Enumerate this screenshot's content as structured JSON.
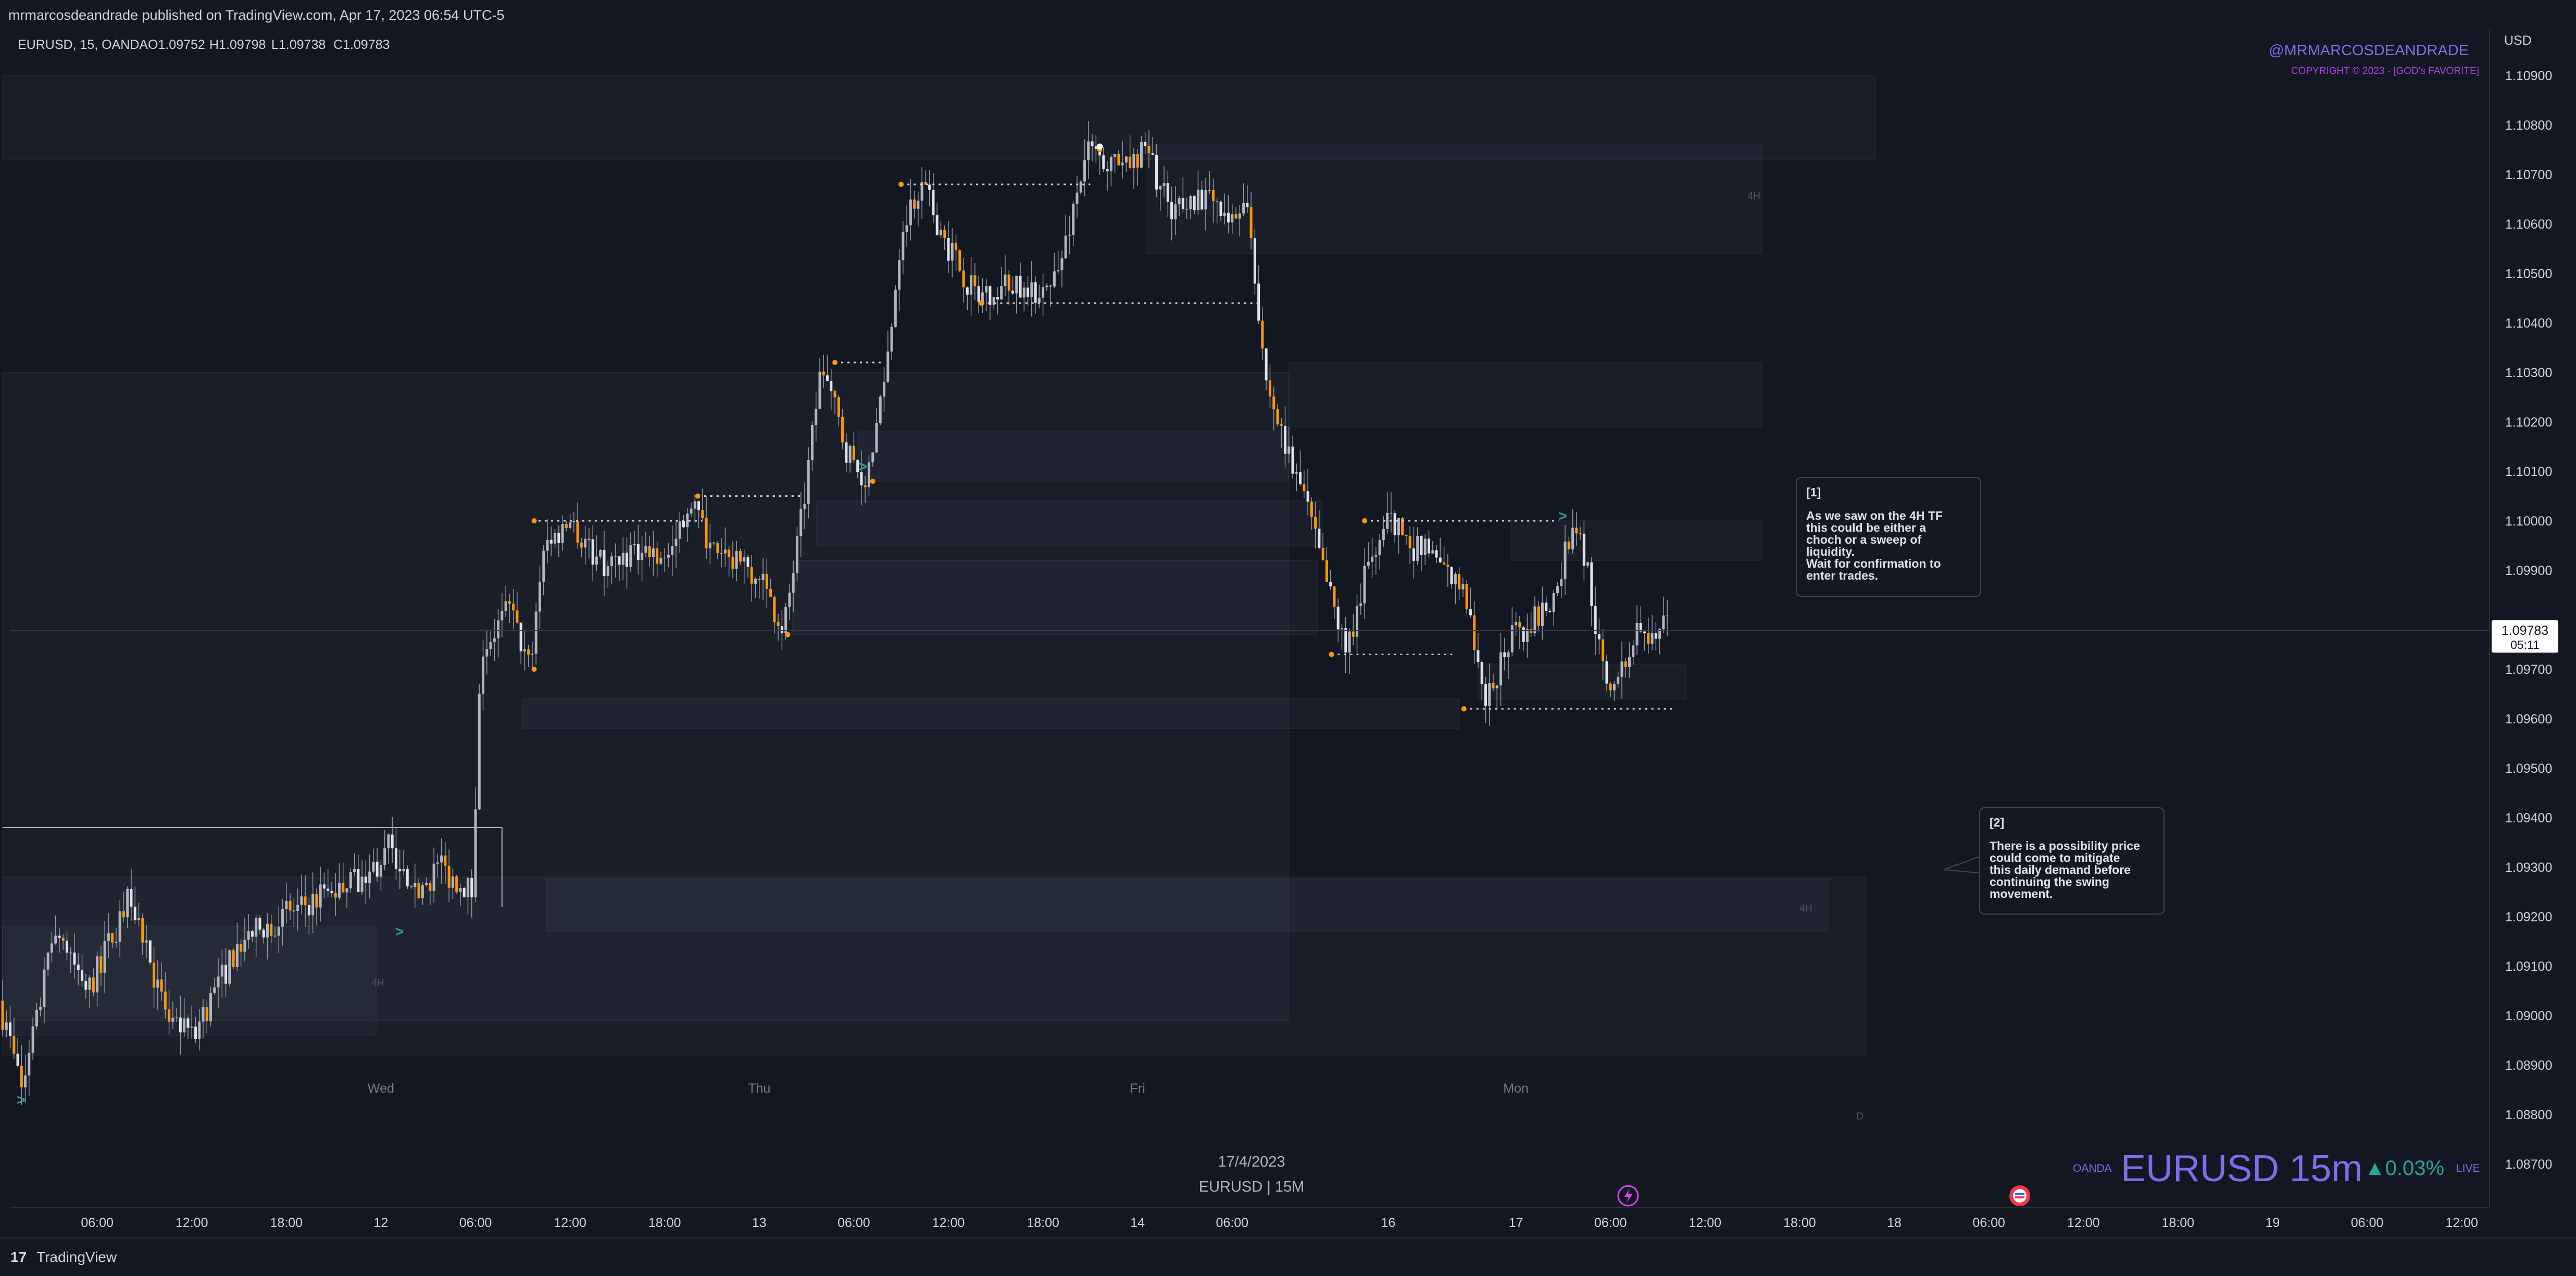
{
  "header": {
    "published": "mrmarcosdeandrade published on TradingView.com, Apr 17, 2023 06:54 UTC-5"
  },
  "symbol_info": {
    "symbol": "EURUSD, 15, OANDA",
    "open": "O1.09752",
    "high": "H1.09798",
    "low": "L1.09738",
    "close": "C1.09783"
  },
  "watermark": {
    "handle": "@MRMARCOSDEANDRADE",
    "copyright": "COPYRIGHT © 2023 - [GOD's FAVORITE]"
  },
  "center_caption": {
    "date": "17/4/2023",
    "label": "EURUSD | 15M"
  },
  "ticker_display": {
    "broker": "OANDA",
    "name": "EURUSD 15m",
    "change": "▲0.03%",
    "live": "LIVE"
  },
  "notes": [
    {
      "title": "[1]",
      "body": "As we saw on the 4H TF\nthis could be either a\nchoch or a sweep of\nliquidity.\nWait for confirmation to\nenter trades."
    },
    {
      "title": "[2]",
      "body": "There is a possibility price\ncould come to mitigate\nthis daily demand before\ncontinuing the swing\nmovement."
    }
  ],
  "footer": {
    "brand": "TradingView",
    "logo": "17"
  },
  "colors": {
    "background": "#131722",
    "candle_up": "#b2b5be",
    "candle_down": "#ff9800",
    "handle": "#7b6fe8",
    "copyright": "#b040e0",
    "change": "#26a69a"
  },
  "chart_data": {
    "type": "candlestick",
    "symbol": "EURUSD",
    "timeframe": "15",
    "currency": "USD",
    "ylim": [
      1.0866,
      1.1099
    ],
    "y_ticks": [
      "1.08700",
      "1.08800",
      "1.08900",
      "1.09000",
      "1.09100",
      "1.09200",
      "1.09300",
      "1.09400",
      "1.09500",
      "1.09600",
      "1.09700",
      "1.09900",
      "1.10000",
      "1.10100",
      "1.10200",
      "1.10300",
      "1.10400",
      "1.10500",
      "1.10600",
      "1.10700",
      "1.10800",
      "1.10900"
    ],
    "x_ticks": [
      {
        "t": 1.0,
        "label": "06:00"
      },
      {
        "t": 2.0,
        "label": "12:00"
      },
      {
        "t": 3.0,
        "label": "18:00"
      },
      {
        "t": 4.0,
        "label": "12"
      },
      {
        "t": 5.0,
        "label": "06:00"
      },
      {
        "t": 6.0,
        "label": "12:00"
      },
      {
        "t": 7.0,
        "label": "18:00"
      },
      {
        "t": 8.0,
        "label": "13"
      },
      {
        "t": 9.0,
        "label": "06:00"
      },
      {
        "t": 10.0,
        "label": "12:00"
      },
      {
        "t": 11.0,
        "label": "18:00"
      },
      {
        "t": 12.0,
        "label": "14"
      },
      {
        "t": 13.0,
        "label": "06:00"
      },
      {
        "t": 14.65,
        "label": "16"
      },
      {
        "t": 16.0,
        "label": "17"
      },
      {
        "t": 17.0,
        "label": "06:00"
      },
      {
        "t": 18.0,
        "label": "12:00"
      },
      {
        "t": 19.0,
        "label": "18:00"
      },
      {
        "t": 20.0,
        "label": "18"
      },
      {
        "t": 21.0,
        "label": "06:00"
      },
      {
        "t": 22.0,
        "label": "12:00"
      },
      {
        "t": 23.0,
        "label": "18:00"
      },
      {
        "t": 24.0,
        "label": "19"
      },
      {
        "t": 25.0,
        "label": "06:00"
      },
      {
        "t": 26.0,
        "label": "12:00"
      }
    ],
    "day_labels": [
      {
        "t": 4.0,
        "label": "Wed"
      },
      {
        "t": 8.0,
        "label": "Thu"
      },
      {
        "t": 12.0,
        "label": "Fri"
      },
      {
        "t": 16.0,
        "label": "Mon"
      }
    ],
    "price_label": {
      "value": "1.09783",
      "countdown": "05:11",
      "price": 1.09783
    },
    "pivots": [
      [
        0.0,
        1.0903
      ],
      [
        0.25,
        1.0885
      ],
      [
        0.6,
        1.0918
      ],
      [
        0.95,
        1.0905
      ],
      [
        1.4,
        1.0925
      ],
      [
        1.75,
        1.09
      ],
      [
        2.05,
        1.0896
      ],
      [
        2.55,
        1.0915
      ],
      [
        3.0,
        1.092
      ],
      [
        3.5,
        1.0925
      ],
      [
        3.9,
        1.0928
      ],
      [
        4.15,
        1.0935
      ],
      [
        4.35,
        1.0923
      ],
      [
        4.65,
        1.093
      ],
      [
        5.0,
        1.0925
      ],
      [
        5.1,
        1.0974
      ],
      [
        5.4,
        1.0982
      ],
      [
        5.62,
        1.097
      ],
      [
        5.75,
        1.0995
      ],
      [
        6.05,
        1.1
      ],
      [
        6.4,
        1.099
      ],
      [
        6.75,
        1.0995
      ],
      [
        7.1,
        1.0993
      ],
      [
        7.3,
        1.1005
      ],
      [
        7.6,
        1.0992
      ],
      [
        8.0,
        1.099
      ],
      [
        8.3,
        1.0978
      ],
      [
        8.5,
        1.1002
      ],
      [
        8.7,
        1.1032
      ],
      [
        8.95,
        1.1015
      ],
      [
        9.15,
        1.1008
      ],
      [
        9.35,
        1.1025
      ],
      [
        9.55,
        1.106
      ],
      [
        9.75,
        1.1068
      ],
      [
        10.05,
        1.1055
      ],
      [
        10.35,
        1.1045
      ],
      [
        10.6,
        1.1048
      ],
      [
        10.9,
        1.1046
      ],
      [
        11.2,
        1.105
      ],
      [
        11.5,
        1.1075
      ],
      [
        11.75,
        1.1072
      ],
      [
        12.15,
        1.1074
      ],
      [
        12.4,
        1.1062
      ],
      [
        12.7,
        1.1066
      ],
      [
        13.0,
        1.106
      ],
      [
        13.2,
        1.1065
      ],
      [
        13.4,
        1.1028
      ],
      [
        13.6,
        1.1015
      ],
      [
        13.8,
        1.1005
      ],
      [
        14.0,
        1.099
      ],
      [
        14.25,
        1.0973
      ],
      [
        14.45,
        1.099
      ],
      [
        14.7,
        1.1
      ],
      [
        14.95,
        1.0995
      ],
      [
        15.2,
        1.0992
      ],
      [
        15.5,
        1.0985
      ],
      [
        15.7,
        1.0962
      ],
      [
        15.95,
        1.0975
      ],
      [
        16.2,
        1.098
      ],
      [
        16.45,
        1.0985
      ],
      [
        16.65,
        1.1
      ],
      [
        16.8,
        1.099
      ],
      [
        16.95,
        1.097
      ],
      [
        17.1,
        1.0965
      ],
      [
        17.35,
        1.0981
      ],
      [
        17.5,
        1.0974
      ],
      [
        17.6,
        1.0978
      ]
    ],
    "zones": [
      {
        "t0": 0.0,
        "t1": 13.6,
        "top": 1.103,
        "bot": 1.0899
      },
      {
        "t0": 0.0,
        "t1": 19.7,
        "top": 1.0928,
        "bot": 1.0892
      },
      {
        "t0": 0.0,
        "t1": 3.95,
        "top": 1.0918,
        "bot": 1.0896
      },
      {
        "t0": 5.75,
        "t1": 19.3,
        "top": 1.09275,
        "bot": 1.0917
      },
      {
        "t0": 13.6,
        "t1": 18.6,
        "top": 1.1032,
        "bot": 1.1019
      },
      {
        "t0": 9.05,
        "t1": 13.6,
        "top": 1.1018,
        "bot": 1.1008
      },
      {
        "t0": 8.35,
        "t1": 13.9,
        "top": 1.0992,
        "bot": 1.0977
      },
      {
        "t0": 8.6,
        "t1": 13.95,
        "top": 1.1004,
        "bot": 1.0995
      },
      {
        "t0": 15.95,
        "t1": 18.6,
        "top": 1.1,
        "bot": 1.0992
      },
      {
        "t0": 12.1,
        "t1": 18.6,
        "top": 1.1076,
        "bot": 1.1054
      },
      {
        "t0": 5.5,
        "t1": 15.4,
        "top": 1.0964,
        "bot": 1.0958
      },
      {
        "t0": 15.6,
        "t1": 17.8,
        "top": 1.0971,
        "bot": 1.0964
      },
      {
        "t0": 0.0,
        "t1": 19.8,
        "top": 1.109,
        "bot": 1.1073
      }
    ],
    "levels": [
      {
        "t0": 5.6,
        "t1": 7.4,
        "price": 1.1
      },
      {
        "t0": 7.35,
        "t1": 8.45,
        "price": 1.1005
      },
      {
        "t0": 8.8,
        "t1": 9.3,
        "price": 1.1032
      },
      {
        "t0": 9.5,
        "t1": 11.5,
        "price": 1.1068
      },
      {
        "t0": 10.35,
        "t1": 13.3,
        "price": 1.1044
      },
      {
        "t0": 14.4,
        "t1": 16.45,
        "price": 1.1
      },
      {
        "t0": 14.05,
        "t1": 15.35,
        "price": 1.0973
      },
      {
        "t0": 15.45,
        "t1": 17.65,
        "price": 1.0962
      }
    ],
    "swing_points": [
      {
        "t": 5.62,
        "price": 1.097
      },
      {
        "t": 5.62,
        "price": 1.1
      },
      {
        "t": 7.35,
        "price": 1.1005
      },
      {
        "t": 8.3,
        "price": 1.0977
      },
      {
        "t": 8.8,
        "price": 1.1032
      },
      {
        "t": 9.2,
        "price": 1.1008
      },
      {
        "t": 9.5,
        "price": 1.1068
      },
      {
        "t": 10.35,
        "price": 1.1044
      },
      {
        "t": 11.6,
        "price": 1.1075
      },
      {
        "t": 14.05,
        "price": 1.0973
      },
      {
        "t": 14.4,
        "price": 1.1
      },
      {
        "t": 15.45,
        "price": 1.0962
      }
    ],
    "arrow_markers": [
      {
        "t": 0.15,
        "price": 1.0882,
        "label": ">"
      },
      {
        "t": 4.15,
        "price": 1.0916,
        "label": ">"
      },
      {
        "t": 9.05,
        "price": 1.101,
        "label": ">"
      },
      {
        "t": 16.45,
        "price": 1.1,
        "label": ">"
      }
    ],
    "zone_tags": [
      {
        "t": 3.9,
        "price": 1.0906,
        "label": "4H"
      },
      {
        "t": 18.45,
        "price": 1.1065,
        "label": "4H"
      },
      {
        "t": 19.0,
        "price": 1.0921,
        "label": "4H"
      },
      {
        "t": 19.6,
        "price": 1.0879,
        "label": "D"
      }
    ]
  }
}
